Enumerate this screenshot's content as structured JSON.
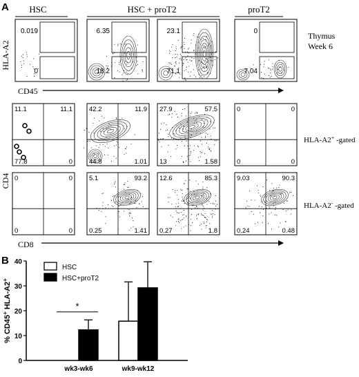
{
  "panel_a": {
    "letter": "A",
    "groups": [
      "HSC",
      "HSC + proT2",
      "proT2"
    ],
    "top_row": {
      "y_label": "HLA-A2",
      "x_label": "CD45",
      "side_label_line1": "Thymus",
      "side_label_line2": "Week 6",
      "plots": [
        {
          "upper": "0.019",
          "lower": "0"
        },
        {
          "upper": "6.35",
          "lower": "18.2"
        },
        {
          "upper": "23.1",
          "lower": "71.1"
        },
        {
          "upper": "0",
          "lower": "7.04"
        }
      ]
    },
    "quadrant_rows": {
      "y_label": "CD4",
      "x_label": "CD8",
      "rows": [
        {
          "gate_label": "HLA-A2",
          "gate_sup": "+",
          "gate_suffix": " -gated",
          "plots": [
            {
              "ul": "11.1",
              "ur": "11.1",
              "ll": "77.8",
              "lr": "0"
            },
            {
              "ul": "42.2",
              "ur": "11.9",
              "ll": "44.8",
              "lr": "1.01"
            },
            {
              "ul": "27.9",
              "ur": "57.5",
              "ll": "13",
              "lr": "1.58"
            },
            {
              "ul": "0",
              "ur": "0",
              "ll": "0",
              "lr": "0"
            }
          ]
        },
        {
          "gate_label": "HLA-A2",
          "gate_sup": "-",
          "gate_suffix": " -gated",
          "plots": [
            {
              "ul": "0",
              "ur": "0",
              "ll": "0",
              "lr": "0"
            },
            {
              "ul": "5.1",
              "ur": "93.2",
              "ll": "0.25",
              "lr": "1.41"
            },
            {
              "ul": "12.6",
              "ur": "85.3",
              "ll": "0.27",
              "lr": "1.8"
            },
            {
              "ul": "9.03",
              "ur": "90.3",
              "ll": "0.24",
              "lr": "0.48"
            }
          ]
        }
      ]
    }
  },
  "chart_data": {
    "type": "bar",
    "panel_letter": "B",
    "ylabel": "% CD45⁺ HLA-A2⁺",
    "ylabel_main": "% CD45",
    "ylabel_sup1": "+",
    "ylabel_mid": " HLA-A2",
    "ylabel_sup2": "+",
    "ylim": [
      0,
      40
    ],
    "yticks": [
      "0",
      "10",
      "20",
      "30",
      "40"
    ],
    "categories": [
      "wk3-wk6",
      "wk9-wk12"
    ],
    "series": [
      {
        "name": "HSC",
        "values": [
          0,
          15.8
        ],
        "errors": [
          0,
          15.8
        ],
        "color": "#ffffff"
      },
      {
        "name": "HSC+proT2",
        "values": [
          12.3,
          29.2
        ],
        "errors": [
          4.0,
          10.5
        ],
        "color": "#000000"
      }
    ],
    "annotation": "*",
    "legend_position": "top-left"
  }
}
